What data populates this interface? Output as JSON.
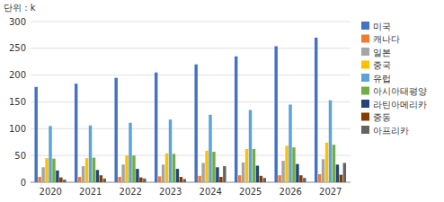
{
  "chart_data": {
    "type": "bar",
    "y_label": "단위 : k",
    "categories": [
      "2020",
      "2021",
      "2022",
      "2023",
      "2024",
      "2025",
      "2026",
      "2027"
    ],
    "series": [
      {
        "name": "미국",
        "color": "#4472C4",
        "values": [
          178,
          184,
          195,
          205,
          220,
          235,
          254,
          270
        ]
      },
      {
        "name": "캐나다",
        "color": "#ED7D31",
        "values": [
          10,
          10,
          10,
          11,
          12,
          13,
          13,
          15
        ]
      },
      {
        "name": "일본",
        "color": "#A5A5A5",
        "values": [
          28,
          30,
          33,
          33,
          36,
          37,
          40,
          43
        ]
      },
      {
        "name": "중국",
        "color": "#FFC000",
        "values": [
          45,
          45,
          50,
          54,
          59,
          62,
          68,
          74
        ]
      },
      {
        "name": "유럽",
        "color": "#5BA3D9",
        "values": [
          105,
          106,
          111,
          117,
          126,
          135,
          145,
          153
        ]
      },
      {
        "name": "아시아태평양",
        "color": "#70AD47",
        "values": [
          44,
          46,
          50,
          53,
          57,
          62,
          65,
          70
        ]
      },
      {
        "name": "라틴아메리카",
        "color": "#264478",
        "values": [
          22,
          23,
          25,
          25,
          28,
          31,
          34,
          33
        ]
      },
      {
        "name": "중동",
        "color": "#833C00",
        "values": [
          9,
          13,
          9,
          10,
          10,
          12,
          13,
          14
        ]
      },
      {
        "name": "아프리카",
        "color": "#636363",
        "values": [
          5,
          7,
          7,
          6,
          30,
          8,
          8,
          36
        ]
      }
    ],
    "ylim": [
      0,
      300
    ],
    "yticks": [
      0,
      50,
      100,
      150,
      200,
      250,
      300
    ],
    "grid": true,
    "legend": "right"
  }
}
